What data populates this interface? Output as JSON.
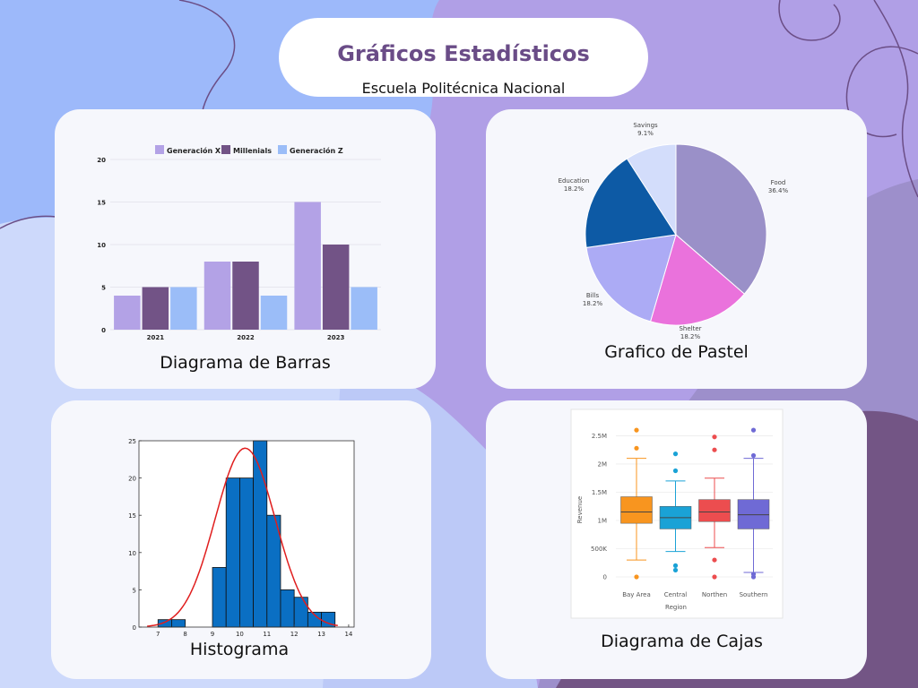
{
  "header": {
    "title": "Gráficos Estadísticos",
    "subtitle": "Escuela Politécnica Nacional"
  },
  "colors": {
    "genx": "#b3a2e6",
    "millenials": "#725386",
    "genz": "#9bbdf8",
    "pie": [
      "#9a90c8",
      "#ea72dc",
      "#acabf5",
      "#0d5aa5",
      "#d3ddfb"
    ],
    "hist": "#0a6fc3",
    "curve": "#e01e1e",
    "box": [
      "#f8951f",
      "#1aa2d6",
      "#ec4d4f",
      "#6f6ad5"
    ]
  },
  "captions": {
    "bar": "Diagrama de Barras",
    "pie": "Grafico de Pastel",
    "hist": "Histograma",
    "box": "Diagrama de Cajas"
  },
  "chart_data": [
    {
      "id": "bar",
      "type": "bar",
      "categories": [
        "2021",
        "2022",
        "2023"
      ],
      "series": [
        {
          "name": "Generación X",
          "values": [
            4,
            8,
            15
          ]
        },
        {
          "name": "Millenials",
          "values": [
            5,
            8,
            10
          ]
        },
        {
          "name": "Generación Z",
          "values": [
            5,
            4,
            5
          ]
        }
      ],
      "yticks": [
        0,
        5,
        10,
        15,
        20
      ],
      "ylim": [
        0,
        20
      ],
      "legend": "top"
    },
    {
      "id": "pie",
      "type": "pie",
      "slices": [
        {
          "label": "Food",
          "pct": "36.4%",
          "value": 36.4
        },
        {
          "label": "Shelter",
          "pct": "18.2%",
          "value": 18.2
        },
        {
          "label": "Bills",
          "pct": "18.2%",
          "value": 18.2
        },
        {
          "label": "Education",
          "pct": "18.2%",
          "value": 18.2
        },
        {
          "label": "Savings",
          "pct": "9.1%",
          "value": 9.1
        }
      ]
    },
    {
      "id": "hist",
      "type": "bar",
      "bins": [
        [
          6.5,
          7
        ],
        [
          7,
          7.5
        ],
        [
          7.5,
          8
        ],
        [
          8,
          8.5
        ],
        [
          8.5,
          9
        ],
        [
          9,
          9.5
        ],
        [
          9.5,
          10
        ],
        [
          10,
          10.5
        ],
        [
          10.5,
          11
        ],
        [
          11,
          11.5
        ],
        [
          11.5,
          12
        ],
        [
          12,
          12.5
        ],
        [
          12.5,
          13
        ],
        [
          13,
          13.5
        ],
        [
          13.5,
          14
        ]
      ],
      "counts": [
        0,
        1,
        1,
        0,
        0,
        8,
        20,
        20,
        25,
        15,
        5,
        4,
        2,
        2,
        0
      ],
      "xticks": [
        7,
        8,
        9,
        10,
        11,
        12,
        13,
        14
      ],
      "xlim": [
        6.3,
        14.2
      ],
      "yticks": [
        0,
        5,
        10,
        15,
        20,
        25
      ],
      "ylim": [
        0,
        25
      ],
      "curve": {
        "type": "normal",
        "mean": 10.2,
        "sd": 1.1,
        "peak": 24
      }
    },
    {
      "id": "box",
      "type": "box",
      "title": "",
      "xlabel": "Region",
      "ylabel": "Revenue",
      "categories": [
        "Bay Area",
        "Central",
        "Northen",
        "Southern"
      ],
      "boxes": [
        {
          "min": 0.3,
          "q1": 0.95,
          "median": 1.15,
          "q3": 1.42,
          "max": 2.1,
          "outliers": [
            2.6,
            2.28,
            0
          ]
        },
        {
          "min": 0.45,
          "q1": 0.85,
          "median": 1.05,
          "q3": 1.25,
          "max": 1.7,
          "outliers": [
            2.18,
            1.88,
            0.2,
            0.12
          ]
        },
        {
          "min": 0.52,
          "q1": 0.98,
          "median": 1.15,
          "q3": 1.37,
          "max": 1.75,
          "outliers": [
            2.48,
            2.25,
            0.3,
            0
          ]
        },
        {
          "min": 0.08,
          "q1": 0.85,
          "median": 1.1,
          "q3": 1.37,
          "max": 2.1,
          "outliers": [
            2.6,
            2.15,
            0.05,
            0
          ]
        }
      ],
      "yticks": [
        {
          "v": 0,
          "l": "0"
        },
        {
          "v": 0.5,
          "l": "500K"
        },
        {
          "v": 1,
          "l": "1M"
        },
        {
          "v": 1.5,
          "l": "1.5M"
        },
        {
          "v": 2,
          "l": "2M"
        },
        {
          "v": 2.5,
          "l": "2.5M"
        }
      ],
      "ylim": [
        0,
        2.65
      ]
    }
  ]
}
